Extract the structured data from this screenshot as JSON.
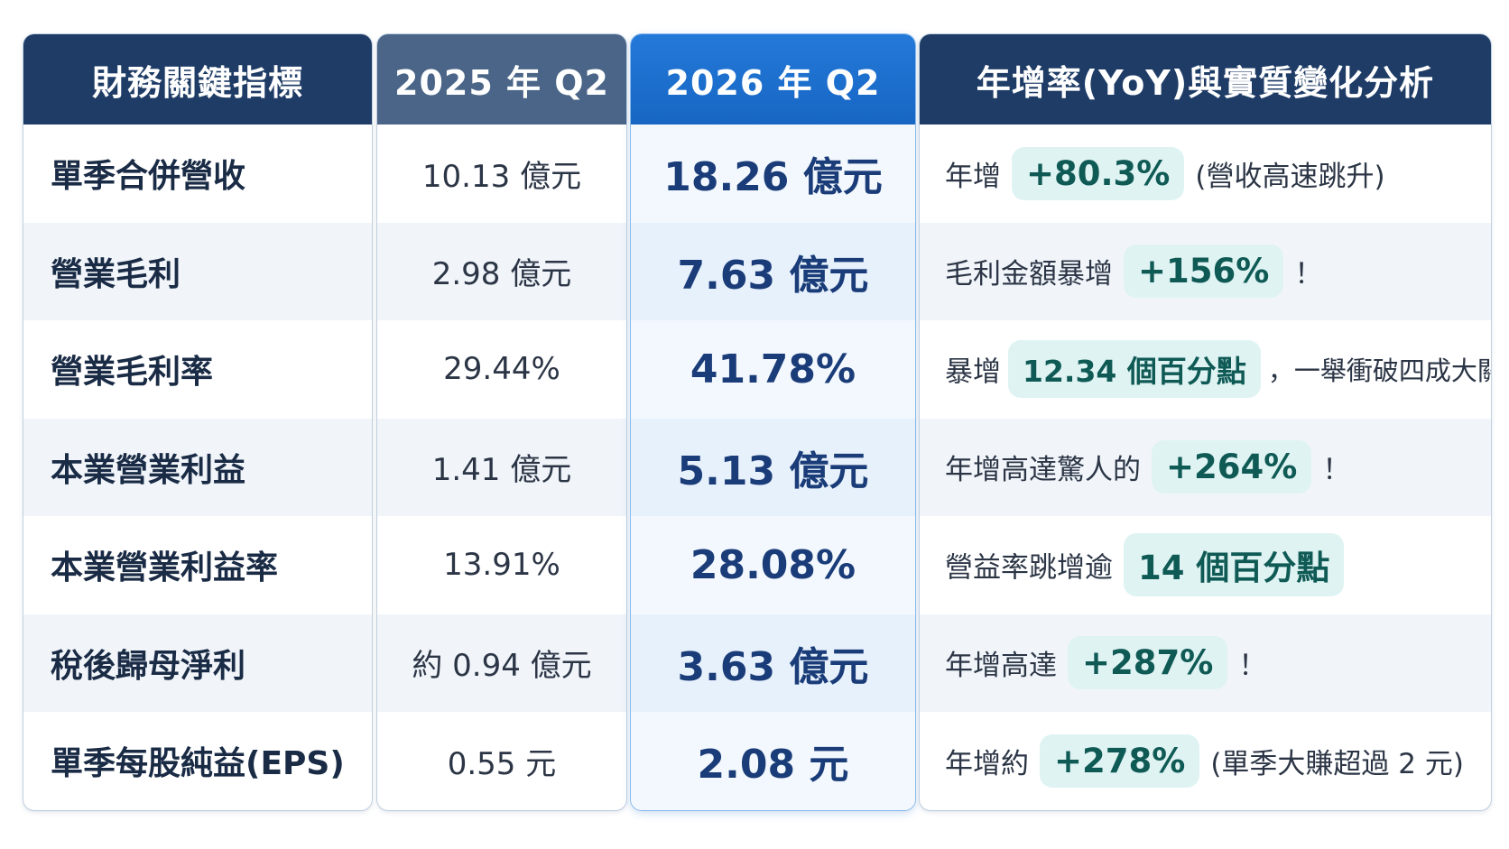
{
  "headers": {
    "metric": "財務關鍵指標",
    "q2025": "2025 年 Q2",
    "q2026": "2026 年 Q2",
    "yoy": "年增率(YoY)與實質變化分析"
  },
  "rows": [
    {
      "metric": "單季合併營收",
      "q2025": "10.13 億元",
      "q2026": "18.26 億元",
      "yoy_pre": "年增",
      "yoy_value": "+80.3%",
      "yoy_post": "(營收高速跳升)"
    },
    {
      "metric": "營業毛利",
      "q2025": "2.98 億元",
      "q2026": "7.63 億元",
      "yoy_pre": "毛利金額暴增",
      "yoy_value": "+156%",
      "yoy_post": "！"
    },
    {
      "metric": "營業毛利率",
      "q2025": "29.44%",
      "q2026": "41.78%",
      "yoy_pre": "暴增",
      "yoy_value": "12.34 個百分點",
      "yoy_post": "，一舉衝破四成大關！"
    },
    {
      "metric": "本業營業利益",
      "q2025": "1.41 億元",
      "q2026": "5.13 億元",
      "yoy_pre": "年增高達驚人的",
      "yoy_value": "+264%",
      "yoy_post": "！"
    },
    {
      "metric": "本業營業利益率",
      "q2025": "13.91%",
      "q2026": "28.08%",
      "yoy_pre": "營益率跳增逾",
      "yoy_value": "14 個百分點",
      "yoy_post": ""
    },
    {
      "metric": "稅後歸母淨利",
      "q2025": "約 0.94 億元",
      "q2026": "3.63 億元",
      "yoy_pre": "年增高達",
      "yoy_value": "+287%",
      "yoy_post": "！"
    },
    {
      "metric": "單季每股純益(EPS)",
      "q2025": "0.55 元",
      "q2026": "2.08 元",
      "yoy_pre": "年增約",
      "yoy_value": "+278%",
      "yoy_post": "(單季大賺超過 2 元)"
    }
  ],
  "colors": {
    "header_navy": "#1e3c66",
    "header_slate": "#4a6587",
    "header_blue": "#1766c4",
    "highlight_text": "#1a3c78",
    "pill_bg": "#dff3f3",
    "pill_text": "#0f5a55"
  }
}
